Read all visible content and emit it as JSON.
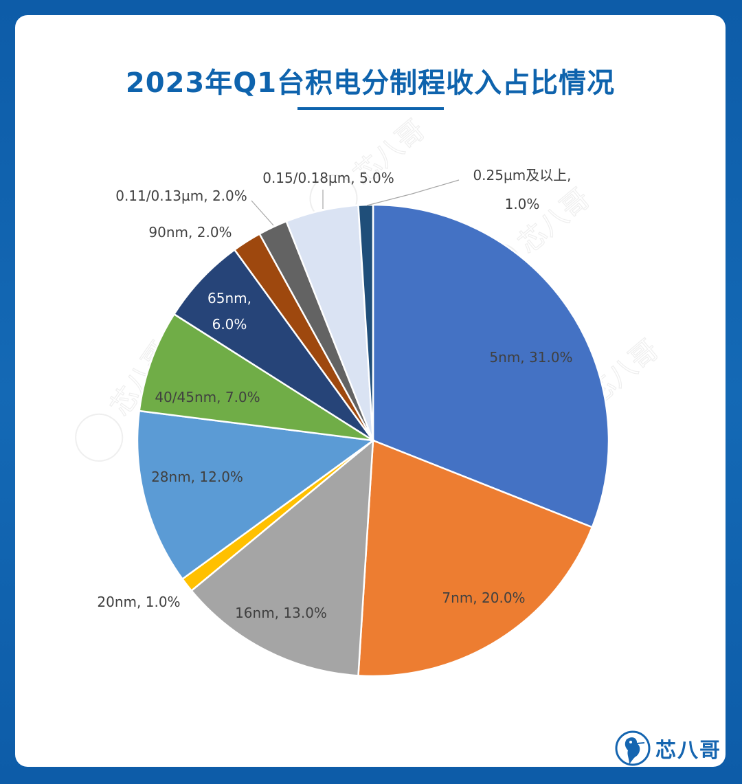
{
  "page": {
    "background_color": "#0f62ad",
    "card_color": "#ffffff",
    "title_color": "#0e63ad"
  },
  "watermark": {
    "text": "芯八哥",
    "icon": "kingfisher-logo-icon"
  },
  "brand": {
    "name": "芯八哥",
    "icon": "kingfisher-logo-icon"
  },
  "chart_data": {
    "type": "pie",
    "title": "2023年Q1台积电分制程收入占比情况",
    "start_angle_deg": 0,
    "direction": "clockwise",
    "slices": [
      {
        "label": "5nm",
        "value": 31.0,
        "display": "5nm, 31.0%",
        "color": "#4472c4"
      },
      {
        "label": "7nm",
        "value": 20.0,
        "display": "7nm, 20.0%",
        "color": "#ed7d31"
      },
      {
        "label": "16nm",
        "value": 13.0,
        "display": "16nm, 13.0%",
        "color": "#a5a5a5"
      },
      {
        "label": "20nm",
        "value": 1.0,
        "display": "20nm, 1.0%",
        "color": "#ffc000"
      },
      {
        "label": "28nm",
        "value": 12.0,
        "display": "28nm, 12.0%",
        "color": "#5b9bd5"
      },
      {
        "label": "40/45nm",
        "value": 7.0,
        "display": "40/45nm, 7.0%",
        "color": "#70ad47"
      },
      {
        "label": "65nm",
        "value": 6.0,
        "display_lines": [
          "65nm,",
          "6.0%"
        ],
        "color": "#264478"
      },
      {
        "label": "90nm",
        "value": 2.0,
        "display": "90nm, 2.0%",
        "color": "#9e480e"
      },
      {
        "label": "0.11/0.13µm",
        "value": 2.0,
        "display": "0.11/0.13µm, 2.0%",
        "color": "#636363"
      },
      {
        "label": "0.15/0.18µm",
        "value": 5.0,
        "display": "0.15/0.18µm, 5.0%",
        "color": "#dae3f3"
      },
      {
        "label": "0.25µm及以上",
        "value": 1.0,
        "display_lines": [
          "0.25µm及以上,",
          "1.0%"
        ],
        "color": "#1f4e79"
      }
    ]
  }
}
